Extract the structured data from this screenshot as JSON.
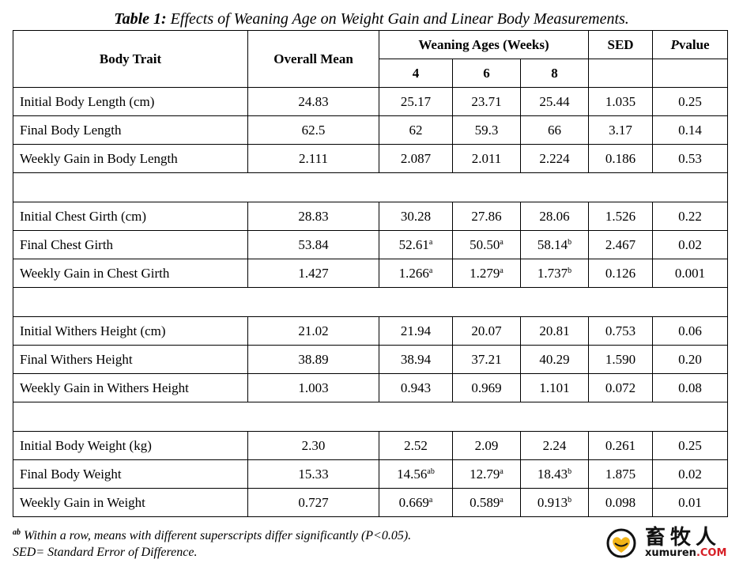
{
  "caption": {
    "lead": "Table 1:",
    "text": " Effects of Weaning Age on Weight Gain and Linear Body Measurements."
  },
  "headers": {
    "body_trait": "Body Trait",
    "overall_mean": "Overall Mean",
    "weaning_ages": "Weaning Ages (Weeks)",
    "age_4": "4",
    "age_6": "6",
    "age_8": "8",
    "sed": "SED",
    "p_italic": "P",
    "p_rest": "value"
  },
  "rows": [
    {
      "trait": "Initial Body Length (cm)",
      "mean": "24.83",
      "w4": "25.17",
      "w4s": "",
      "w6": "23.71",
      "w6s": "",
      "w8": "25.44",
      "w8s": "",
      "sed": "1.035",
      "p": "0.25"
    },
    {
      "trait": "Final Body Length",
      "mean": "62.5",
      "w4": "62",
      "w4s": "",
      "w6": "59.3",
      "w6s": "",
      "w8": "66",
      "w8s": "",
      "sed": "3.17",
      "p": "0.14"
    },
    {
      "trait": "Weekly Gain in Body Length",
      "mean": "2.111",
      "w4": "2.087",
      "w4s": "",
      "w6": "2.011",
      "w6s": "",
      "w8": "2.224",
      "w8s": "",
      "sed": "0.186",
      "p": "0.53"
    },
    {
      "trait": "Initial Chest Girth (cm)",
      "mean": "28.83",
      "w4": "30.28",
      "w4s": "",
      "w6": "27.86",
      "w6s": "",
      "w8": "28.06",
      "w8s": "",
      "sed": "1.526",
      "p": "0.22"
    },
    {
      "trait": "Final Chest Girth",
      "mean": "53.84",
      "w4": "52.61",
      "w4s": "a",
      "w6": "50.50",
      "w6s": "a",
      "w8": "58.14",
      "w8s": "b",
      "sed": "2.467",
      "p": "0.02"
    },
    {
      "trait": "Weekly Gain in Chest Girth",
      "mean": "1.427",
      "w4": "1.266",
      "w4s": "a",
      "w6": "1.279",
      "w6s": "a",
      "w8": "1.737",
      "w8s": "b",
      "sed": "0.126",
      "p": "0.001"
    },
    {
      "trait": "Initial Withers Height (cm)",
      "mean": "21.02",
      "w4": "21.94",
      "w4s": "",
      "w6": "20.07",
      "w6s": "",
      "w8": "20.81",
      "w8s": "",
      "sed": "0.753",
      "p": "0.06"
    },
    {
      "trait": "Final Withers Height",
      "mean": "38.89",
      "w4": "38.94",
      "w4s": "",
      "w6": "37.21",
      "w6s": "",
      "w8": "40.29",
      "w8s": "",
      "sed": "1.590",
      "p": "0.20"
    },
    {
      "trait": "Weekly Gain in Withers Height",
      "mean": "1.003",
      "w4": "0.943",
      "w4s": "",
      "w6": "0.969",
      "w6s": "",
      "w8": "1.101",
      "w8s": "",
      "sed": "0.072",
      "p": "0.08"
    },
    {
      "trait": "Initial Body Weight (kg)",
      "mean": "2.30",
      "w4": "2.52",
      "w4s": "",
      "w6": "2.09",
      "w6s": "",
      "w8": "2.24",
      "w8s": "",
      "sed": "0.261",
      "p": "0.25"
    },
    {
      "trait": "Final Body Weight",
      "mean": "15.33",
      "w4": "14.56",
      "w4s": "ab",
      "w6": "12.79",
      "w6s": "a",
      "w8": "18.43",
      "w8s": "b",
      "sed": "1.875",
      "p": "0.02"
    },
    {
      "trait": "Weekly Gain in Weight",
      "mean": "0.727",
      "w4": "0.669",
      "w4s": "a",
      "w6": "0.589",
      "w6s": "a",
      "w8": "0.913",
      "w8s": "b",
      "sed": "0.098",
      "p": "0.01"
    }
  ],
  "footnotes": {
    "sup": "ab",
    "note1": " Within a row, means with different superscripts differ significantly (P<0.05).",
    "note2": "SED= Standard Error of Difference."
  },
  "watermark": {
    "chinese": "畜牧人",
    "url_main": "xumuren",
    "url_domain": ".COM",
    "colors": {
      "accent": "#d61f26",
      "gold": "#f2b417"
    }
  }
}
